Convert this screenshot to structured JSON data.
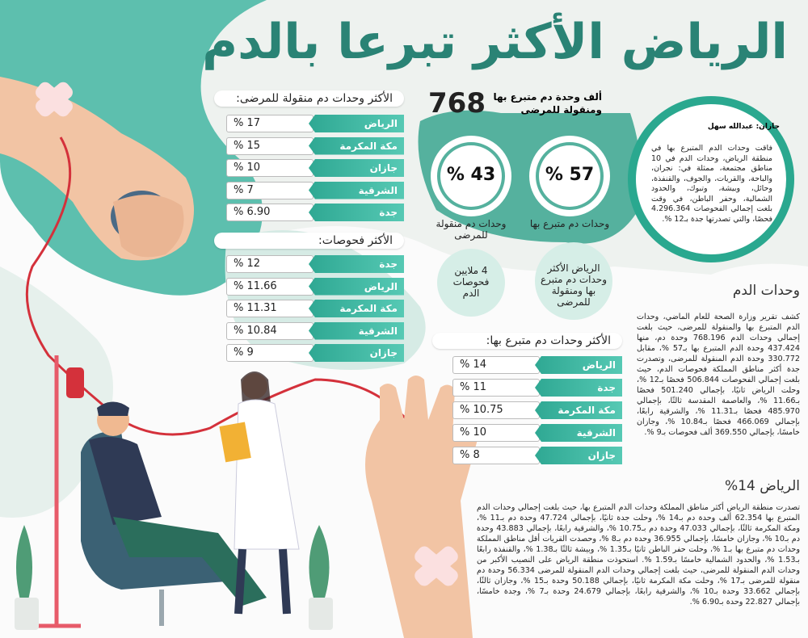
{
  "title": "الرياض الأكثر تبرعا بالدم",
  "headline": {
    "number": "768",
    "text": "ألف وحدة دم متبرع بها ومنقولة للمرضى"
  },
  "stats": [
    {
      "value": "% 57",
      "label": "وحدات دم متبرع بها"
    },
    {
      "value": "% 43",
      "label": "وحدات دم منقولة للمرضى"
    }
  ],
  "highlights": [
    "الرياض الأكثر وحدات دم متبرع بها ومنقولة للمرضى",
    "4 ملايين فحوصات الدم"
  ],
  "quote": {
    "byline": "جازان: عبدالله سهل",
    "text": "فاقت وحدات الدم المتبرع بها في منطقة الرياض، وحدات الدم في 10 مناطق مجتمعة، ممثلة في: نجران، والباحة، والقريات، والجوف، والقنفذة، وحائل، وبيشة، وتبوك، والحدود الشمالية، وحفر الباطن، في وقت بلغت إجمالي الفحوصات 4.296.364 فحصًا، والتي تصدرتها جدة بـ12 %."
  },
  "sections": [
    {
      "heading": "وحدات الدم",
      "text": "كشف تقرير وزارة الصحة للعام الماضي، وحدات الدم المتبرع بها والمنقولة للمرضى، حيث بلغت إجمالي وحدات الدم 768.196 وحدة دم، منها 437.424 وحدة الدم المتبرع بها بـ57 %، مقابل 330.772 وحدة الدم المنقولة للمرضى، وتصدرت جدة أكثر مناطق المملكة فحوصات الدم، حيث بلغت إجمالي الفحوصات 506.844 فحصًا بـ12 %، وحلت الرياض ثانيًا، بإجمالي 501.240 فحصًا بـ11.66 %، والعاصمة المقدسة ثالثًا، بإجمالي 485.970 فحصًا بـ11.31 %، والشرقية رابعًا، بإجمالي 466.069 فحصًا بـ10.84 %، وجازان خامسًا، بإجمالي 369.550 ألف فحوصات بـ9 %."
    },
    {
      "heading": "الرياض 14%",
      "text": "تصدرت منطقة الرياض أكثر مناطق المملكة وحدات الدم المتبرع بها، حيث بلغت إجمالي وحدات الدم المتبرع بها 62.354 ألف وحدة دم بـ14 %، وحلت جدة ثانيًا، بإجمالي 47.724 وحدة دم بـ11 %، ومكة المكرمة ثالثًا، بإجمالي 47.033 وحدة دم بـ10.75 %، والشرقية رابعًا، بإجمالي 43.883 وحدة دم بـ10 %، وجازان خامسًا، بإجمالي 36.955 وحدة دم بـ8 %، وحصدت القريات أقل مناطق المملكة وحدات دم متبرع بها بـ1 %، وحلت حفر الباطن ثانيًا بـ1.35 %، وبيشة ثالثًا بـ1.38 %، والقنفذة رابعًا بـ1.53 %، والحدود الشمالية خامسًا بـ1.59 %. استحوذت منطقة الرياض على النصيب الأكبر من وحدات الدم المنقولة للمرضى، حيث بلغت إجمالي وحدات الدم المنقولة للمرضى 56.334 وحدة دم منقولة للمرضى بـ17 %، وحلت مكة المكرمة ثانيًا، بإجمالي 50.188 وحدة بـ15 %، وجازان ثالثًا، بإجمالي 33.662 وحدة بـ10 %، والشرقية رابعًا، بإجمالي 24.679 وحدة بـ7 %، وجدة خامسًا، بإجمالي 22.827 وحدة بـ6.90 %."
    }
  ],
  "tables": [
    {
      "heading": "الأكثر وحدات دم منقولة للمرضى:",
      "rows": [
        {
          "region": "الرياض",
          "value": "% 17"
        },
        {
          "region": "مكة المكرمة",
          "value": "% 15"
        },
        {
          "region": "جازان",
          "value": "% 10"
        },
        {
          "region": "الشرقية",
          "value": "% 7"
        },
        {
          "region": "جدة",
          "value": "% 6.90"
        }
      ]
    },
    {
      "heading": "الأكثر فحوصات:",
      "rows": [
        {
          "region": "جدة",
          "value": "% 12"
        },
        {
          "region": "الرياض",
          "value": "% 11.66"
        },
        {
          "region": "مكة المكرمة",
          "value": "% 11.31"
        },
        {
          "region": "الشرقية",
          "value": "% 10.84"
        },
        {
          "region": "جازان",
          "value": "% 9"
        }
      ]
    },
    {
      "heading": "الأكثر وحدات دم متبرع بها:",
      "rows": [
        {
          "region": "الرياض",
          "value": "% 14"
        },
        {
          "region": "جدة",
          "value": "% 11"
        },
        {
          "region": "مكة المكرمة",
          "value": "% 10.75"
        },
        {
          "region": "الشرقية",
          "value": "% 10"
        },
        {
          "region": "جازان",
          "value": "% 8"
        }
      ]
    }
  ]
}
